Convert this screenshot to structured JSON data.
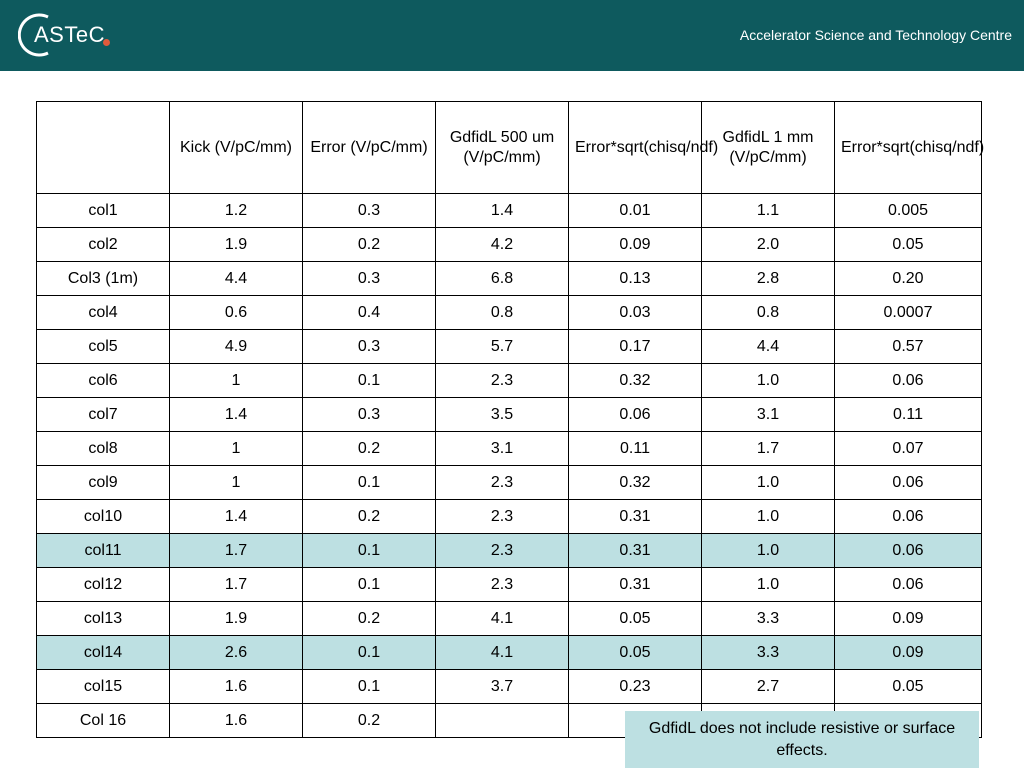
{
  "header": {
    "logo_text": "ASTeC",
    "title": "Accelerator Science and Technology Centre",
    "background": "#0e5a5e",
    "logo_dot_color": "#e05a3c"
  },
  "table": {
    "headers": [
      "",
      "Kick (V/pC/mm)",
      "Error (V/pC/mm)",
      "GdfidL 500 um (V/pC/mm)",
      "Error*sqrt(chisq/ndf)",
      "GdfidL 1 mm (V/pC/mm)",
      "Error*sqrt(chisq/ndf)"
    ],
    "highlight_color": "#bde0e2",
    "rows": [
      {
        "cells": [
          "col1",
          "1.2",
          "0.3",
          "1.4",
          "0.01",
          "1.1",
          "0.005"
        ],
        "highlight": false
      },
      {
        "cells": [
          "col2",
          "1.9",
          "0.2",
          "4.2",
          "0.09",
          "2.0",
          "0.05"
        ],
        "highlight": false
      },
      {
        "cells": [
          "Col3 (1m)",
          "4.4",
          "0.3",
          "6.8",
          "0.13",
          "2.8",
          "0.20"
        ],
        "highlight": false
      },
      {
        "cells": [
          "col4",
          "0.6",
          "0.4",
          "0.8",
          "0.03",
          "0.8",
          "0.0007"
        ],
        "highlight": false
      },
      {
        "cells": [
          "col5",
          "4.9",
          "0.3",
          "5.7",
          "0.17",
          "4.4",
          "0.57"
        ],
        "highlight": false
      },
      {
        "cells": [
          "col6",
          "1",
          "0.1",
          "2.3",
          "0.32",
          "1.0",
          "0.06"
        ],
        "highlight": false
      },
      {
        "cells": [
          "col7",
          "1.4",
          "0.3",
          "3.5",
          "0.06",
          "3.1",
          "0.11"
        ],
        "highlight": false
      },
      {
        "cells": [
          "col8",
          "1",
          "0.2",
          "3.1",
          "0.11",
          "1.7",
          "0.07"
        ],
        "highlight": false
      },
      {
        "cells": [
          "col9",
          "1",
          "0.1",
          "2.3",
          "0.32",
          "1.0",
          "0.06"
        ],
        "highlight": false
      },
      {
        "cells": [
          "col10",
          "1.4",
          "0.2",
          "2.3",
          "0.31",
          "1.0",
          "0.06"
        ],
        "highlight": false
      },
      {
        "cells": [
          "col11",
          "1.7",
          "0.1",
          "2.3",
          "0.31",
          "1.0",
          "0.06"
        ],
        "highlight": true
      },
      {
        "cells": [
          "col12",
          "1.7",
          "0.1",
          "2.3",
          "0.31",
          "1.0",
          "0.06"
        ],
        "highlight": false
      },
      {
        "cells": [
          "col13",
          "1.9",
          "0.2",
          "4.1",
          "0.05",
          "3.3",
          "0.09"
        ],
        "highlight": false
      },
      {
        "cells": [
          "col14",
          "2.6",
          "0.1",
          "4.1",
          "0.05",
          "3.3",
          "0.09"
        ],
        "highlight": true
      },
      {
        "cells": [
          "col15",
          "1.6",
          "0.1",
          "3.7",
          "0.23",
          "2.7",
          "0.05"
        ],
        "highlight": false
      },
      {
        "cells": [
          "Col 16",
          "1.6",
          "0.2",
          "",
          "",
          "",
          ""
        ],
        "highlight": false
      }
    ]
  },
  "note": {
    "text": "GdfidL does not include resistive or surface effects."
  }
}
